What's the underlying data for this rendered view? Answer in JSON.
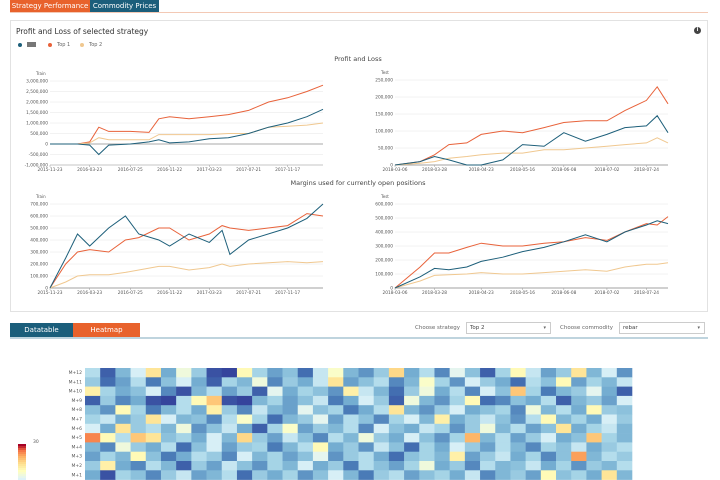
{
  "tabs": [
    {
      "label": "Strategy Performance",
      "active": true
    },
    {
      "label": "Commodity Prices",
      "active": false
    }
  ],
  "panel": {
    "title": "Profit and Loss of selected strategy",
    "info_icon": "info-icon"
  },
  "legend": [
    {
      "label": "",
      "color": "#1d5f7a"
    },
    {
      "label": "Top 1",
      "color": "#e8623a"
    },
    {
      "label": "Top 2",
      "color": "#f0c890"
    }
  ],
  "section_titles": {
    "pnl": "Profit and Loss",
    "margins": "Margins used for currently open positions"
  },
  "colors": {
    "accent_orange": "#e8622c",
    "accent_teal": "#1b5e7b"
  },
  "chart_data": [
    {
      "type": "line",
      "subtitle": "Train",
      "ylim": [
        -1000000,
        3000000
      ],
      "yticks": [
        "3,000,000",
        "2,500,000",
        "2,000,000",
        "1,500,000",
        "1,000,000",
        "500,000",
        "0",
        "-500,000",
        "-1,000,000"
      ],
      "xticks": [
        "2015-11-23",
        "2016-03-23",
        "2016-07-25",
        "2016-11-22",
        "2017-03-23",
        "2017-07-21",
        "2017-11-17"
      ],
      "x": [
        "2015-11-23",
        "2016-02-15",
        "2016-03-23",
        "2016-04-20",
        "2016-05-20",
        "2016-07-25",
        "2016-09-20",
        "2016-10-20",
        "2016-11-22",
        "2017-01-20",
        "2017-03-23",
        "2017-05-20",
        "2017-07-21",
        "2017-09-20",
        "2017-11-17",
        "2018-01-15",
        "2018-03-05"
      ],
      "series": [
        {
          "values": [
            0,
            0,
            -50000,
            -500000,
            -50000,
            0,
            100000,
            200000,
            50000,
            100000,
            250000,
            300000,
            500000,
            800000,
            1000000,
            1300000,
            1650000
          ]
        },
        {
          "name": "Top 1",
          "values": [
            0,
            0,
            100000,
            800000,
            600000,
            600000,
            550000,
            1200000,
            1300000,
            1200000,
            1300000,
            1400000,
            1600000,
            2000000,
            2200000,
            2500000,
            2800000
          ]
        },
        {
          "name": "Top 2",
          "values": [
            0,
            0,
            50000,
            300000,
            200000,
            200000,
            200000,
            450000,
            450000,
            450000,
            450000,
            500000,
            500000,
            800000,
            850000,
            900000,
            1000000
          ]
        }
      ]
    },
    {
      "type": "line",
      "subtitle": "Test",
      "ylim": [
        0,
        250000
      ],
      "yticks": [
        "250,000",
        "200,000",
        "150,000",
        "100,000",
        "50,000",
        "0"
      ],
      "xticks": [
        "2018-03-06",
        "2018-03-28",
        "2018-04-23",
        "2018-05-16",
        "2018-06-08",
        "2018-07-02",
        "2018-07-24"
      ],
      "x": [
        "2018-03-06",
        "2018-03-20",
        "2018-03-28",
        "2018-04-05",
        "2018-04-15",
        "2018-04-23",
        "2018-05-05",
        "2018-05-16",
        "2018-05-28",
        "2018-06-08",
        "2018-06-20",
        "2018-07-02",
        "2018-07-12",
        "2018-07-24",
        "2018-07-30",
        "2018-08-05"
      ],
      "series": [
        {
          "values": [
            0,
            10000,
            25000,
            15000,
            0,
            0,
            15000,
            60000,
            55000,
            95000,
            70000,
            90000,
            110000,
            115000,
            145000,
            95000
          ]
        },
        {
          "name": "Top 1",
          "values": [
            0,
            10000,
            30000,
            60000,
            65000,
            90000,
            100000,
            95000,
            110000,
            125000,
            130000,
            130000,
            160000,
            190000,
            230000,
            180000
          ]
        },
        {
          "name": "Top 2",
          "values": [
            0,
            5000,
            10000,
            20000,
            25000,
            30000,
            35000,
            35000,
            45000,
            45000,
            50000,
            55000,
            60000,
            65000,
            80000,
            65000
          ]
        }
      ]
    },
    {
      "type": "line",
      "subtitle": "Train",
      "ylim": [
        0,
        700000
      ],
      "yticks": [
        "700,000",
        "600,000",
        "500,000",
        "400,000",
        "300,000",
        "200,000",
        "100,000",
        "0"
      ],
      "xticks": [
        "2015-11-23",
        "2016-03-23",
        "2016-07-25",
        "2016-11-22",
        "2017-03-23",
        "2017-07-21",
        "2017-11-17"
      ],
      "x": [
        "2015-11-23",
        "2016-01-10",
        "2016-02-15",
        "2016-03-23",
        "2016-05-20",
        "2016-07-10",
        "2016-08-20",
        "2016-10-20",
        "2016-11-22",
        "2017-01-20",
        "2017-03-23",
        "2017-05-01",
        "2017-05-25",
        "2017-07-21",
        "2017-11-17",
        "2018-01-15",
        "2018-03-05"
      ],
      "series": [
        {
          "values": [
            0,
            250000,
            450000,
            350000,
            500000,
            600000,
            450000,
            400000,
            350000,
            450000,
            380000,
            480000,
            280000,
            400000,
            500000,
            580000,
            700000
          ]
        },
        {
          "name": "Top 1",
          "values": [
            0,
            200000,
            300000,
            320000,
            300000,
            400000,
            420000,
            500000,
            500000,
            400000,
            450000,
            520000,
            500000,
            480000,
            520000,
            620000,
            600000
          ]
        },
        {
          "name": "Top 2",
          "values": [
            0,
            50000,
            100000,
            110000,
            110000,
            130000,
            150000,
            180000,
            180000,
            150000,
            170000,
            200000,
            180000,
            200000,
            220000,
            210000,
            220000
          ]
        }
      ]
    },
    {
      "type": "line",
      "subtitle": "Test",
      "ylim": [
        0,
        600000
      ],
      "yticks": [
        "600,000",
        "500,000",
        "400,000",
        "300,000",
        "200,000",
        "100,000",
        "0"
      ],
      "xticks": [
        "2018-03-06",
        "2018-03-28",
        "2018-04-23",
        "2018-05-16",
        "2018-06-08",
        "2018-07-02",
        "2018-07-24"
      ],
      "x": [
        "2018-03-06",
        "2018-03-20",
        "2018-03-28",
        "2018-04-05",
        "2018-04-15",
        "2018-04-23",
        "2018-05-05",
        "2018-05-16",
        "2018-05-28",
        "2018-06-08",
        "2018-06-20",
        "2018-07-02",
        "2018-07-12",
        "2018-07-24",
        "2018-07-30",
        "2018-08-05"
      ],
      "series": [
        {
          "values": [
            0,
            80000,
            140000,
            130000,
            150000,
            190000,
            220000,
            260000,
            290000,
            330000,
            380000,
            330000,
            400000,
            450000,
            480000,
            460000
          ]
        },
        {
          "name": "Top 1",
          "values": [
            0,
            150000,
            250000,
            250000,
            290000,
            320000,
            300000,
            300000,
            320000,
            330000,
            360000,
            340000,
            400000,
            460000,
            450000,
            510000
          ]
        },
        {
          "name": "Top 2",
          "values": [
            0,
            50000,
            90000,
            95000,
            100000,
            110000,
            100000,
            100000,
            110000,
            120000,
            130000,
            120000,
            150000,
            170000,
            170000,
            180000
          ]
        }
      ]
    }
  ],
  "lower_tabs": [
    {
      "label": "Datatable",
      "active": false
    },
    {
      "label": "Heatmap",
      "active": true
    }
  ],
  "controls": {
    "strategy_label": "Choose strategy",
    "strategy_value": "Top 2",
    "commodity_label": "Choose commodity",
    "commodity_value": "rebar"
  },
  "heatmap": {
    "rows": [
      "M+12",
      "M+11",
      "M+10",
      "M+9",
      "M+8",
      "M+7",
      "M+6",
      "M+5",
      "M+4",
      "M+3",
      "M+2",
      "M+1"
    ],
    "scale_max_label": "30",
    "values": [
      [
        14,
        3,
        10,
        16,
        22,
        9,
        18,
        12,
        2,
        1,
        20,
        13,
        8,
        11,
        4,
        15,
        19,
        10,
        7,
        12,
        23,
        9,
        14,
        6,
        17,
        11,
        3,
        13,
        20,
        15,
        8,
        12,
        22,
        10,
        16,
        7
      ],
      [
        12,
        4,
        8,
        14,
        5,
        11,
        16,
        9,
        3,
        13,
        10,
        18,
        6,
        12,
        9,
        15,
        22,
        8,
        11,
        14,
        6,
        10,
        19,
        13,
        7,
        16,
        12,
        9,
        4,
        14,
        11,
        20,
        8,
        13,
        10,
        15
      ],
      [
        21,
        13,
        9,
        11,
        16,
        6,
        2,
        10,
        14,
        8,
        12,
        3,
        17,
        9,
        13,
        11,
        7,
        21,
        15,
        10,
        4,
        12,
        18,
        9,
        14,
        6,
        16,
        11,
        24,
        13,
        5,
        10,
        12,
        17,
        9,
        3
      ],
      [
        3,
        12,
        6,
        9,
        2,
        1,
        14,
        20,
        24,
        2,
        1,
        10,
        13,
        8,
        11,
        15,
        5,
        9,
        16,
        12,
        3,
        18,
        10,
        7,
        13,
        20,
        4,
        6,
        11,
        9,
        14,
        3,
        10,
        12,
        8,
        16
      ],
      [
        11,
        7,
        20,
        13,
        5,
        10,
        14,
        9,
        21,
        12,
        6,
        15,
        10,
        8,
        17,
        11,
        13,
        5,
        9,
        14,
        22,
        10,
        7,
        12,
        16,
        9,
        11,
        13,
        6,
        18,
        10,
        14,
        9,
        20,
        12,
        11
      ],
      [
        13,
        15,
        9,
        12,
        22,
        16,
        10,
        11,
        6,
        14,
        19,
        13,
        4,
        10,
        12,
        17,
        8,
        14,
        11,
        6,
        13,
        16,
        10,
        21,
        9,
        12,
        15,
        11,
        7,
        14,
        20,
        10,
        13,
        9,
        16,
        12
      ],
      [
        16,
        9,
        22,
        12,
        14,
        10,
        18,
        7,
        11,
        15,
        9,
        3,
        13,
        19,
        8,
        12,
        10,
        14,
        6,
        16,
        11,
        9,
        15,
        13,
        7,
        12,
        18,
        10,
        14,
        8,
        11,
        22,
        9,
        13,
        15,
        10
      ],
      [
        27,
        20,
        14,
        24,
        22,
        11,
        13,
        9,
        16,
        10,
        23,
        12,
        8,
        15,
        11,
        6,
        14,
        10,
        18,
        12,
        9,
        16,
        11,
        7,
        13,
        25,
        10,
        14,
        8,
        12,
        16,
        9,
        11,
        24,
        13,
        10
      ],
      [
        10,
        6,
        18,
        12,
        9,
        14,
        4,
        11,
        16,
        8,
        12,
        13,
        5,
        10,
        14,
        20,
        9,
        12,
        7,
        15,
        11,
        4,
        13,
        9,
        16,
        12,
        8,
        14,
        10,
        6,
        13,
        11,
        15,
        9,
        12,
        14
      ],
      [
        8,
        13,
        10,
        20,
        11,
        5,
        9,
        14,
        12,
        6,
        16,
        10,
        13,
        8,
        11,
        17,
        7,
        12,
        14,
        9,
        4,
        11,
        13,
        10,
        21,
        8,
        12,
        15,
        9,
        13,
        6,
        11,
        26,
        10,
        14,
        12
      ],
      [
        12,
        21,
        9,
        6,
        14,
        10,
        3,
        12,
        8,
        15,
        11,
        7,
        13,
        10,
        16,
        9,
        12,
        5,
        14,
        11,
        8,
        13,
        18,
        9,
        12,
        6,
        14,
        10,
        11,
        15,
        9,
        13,
        7,
        12,
        10,
        14
      ],
      [
        9,
        2,
        13,
        11,
        6,
        12,
        15,
        8,
        10,
        14,
        4,
        12,
        9,
        13,
        7,
        11,
        16,
        10,
        5,
        12,
        14,
        8,
        11,
        13,
        9,
        15,
        6,
        10,
        12,
        8,
        20,
        11,
        13,
        9,
        22,
        10
      ]
    ]
  }
}
